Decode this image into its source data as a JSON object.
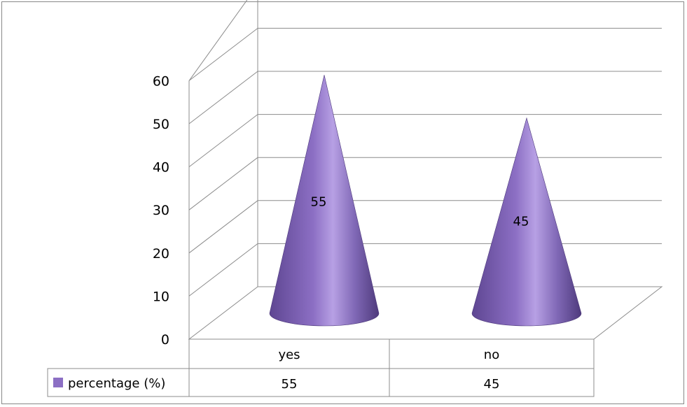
{
  "chart_data": {
    "type": "bar",
    "style": "3d-cone",
    "categories": [
      "yes",
      "no"
    ],
    "series": [
      {
        "name": "percentage (%)",
        "values": [
          55,
          45
        ],
        "color": "#8c6fc4"
      }
    ],
    "ylim": [
      0,
      60
    ],
    "yticks": [
      0,
      10,
      20,
      30,
      40,
      50,
      60
    ],
    "grid": true,
    "data_labels": true,
    "legend": "data-table-left",
    "table": {
      "row_label": "percentage (%)",
      "values": [
        "55",
        "45"
      ]
    }
  }
}
